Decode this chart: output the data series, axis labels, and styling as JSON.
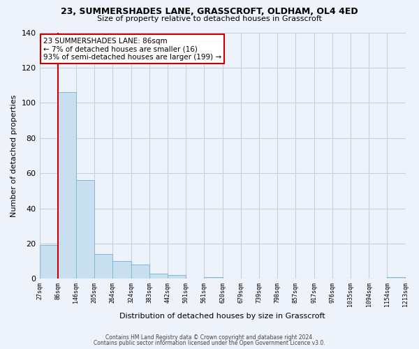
{
  "title": "23, SUMMERSHADES LANE, GRASSCROFT, OLDHAM, OL4 4ED",
  "subtitle": "Size of property relative to detached houses in Grasscroft",
  "xlabel": "Distribution of detached houses by size in Grasscroft",
  "ylabel": "Number of detached properties",
  "bar_values": [
    19,
    106,
    56,
    14,
    10,
    8,
    3,
    2,
    0,
    1,
    0,
    0,
    0,
    0,
    0,
    0,
    0,
    0,
    0,
    1
  ],
  "bar_labels": [
    "27sqm",
    "86sqm",
    "146sqm",
    "205sqm",
    "264sqm",
    "324sqm",
    "383sqm",
    "442sqm",
    "501sqm",
    "561sqm",
    "620sqm",
    "679sqm",
    "739sqm",
    "798sqm",
    "857sqm",
    "917sqm",
    "976sqm",
    "1035sqm",
    "1094sqm",
    "1154sqm",
    "1213sqm"
  ],
  "bar_color": "#c8dff0",
  "highlight_bar_index": 1,
  "highlight_edge_color": "#cc0000",
  "normal_edge_color": "#7fb8d8",
  "ylim": [
    0,
    140
  ],
  "yticks": [
    0,
    20,
    40,
    60,
    80,
    100,
    120,
    140
  ],
  "annotation_text": "23 SUMMERSHADES LANE: 86sqm\n← 7% of detached houses are smaller (16)\n93% of semi-detached houses are larger (199) →",
  "annotation_box_color": "#ffffff",
  "annotation_edge_color": "#cc0000",
  "footer_line1": "Contains HM Land Registry data © Crown copyright and database right 2024.",
  "footer_line2": "Contains public sector information licensed under the Open Government Licence v3.0.",
  "background_color": "#eef2fa",
  "plot_background_color": "#eef2fa",
  "grid_color": "#c8d0e0"
}
